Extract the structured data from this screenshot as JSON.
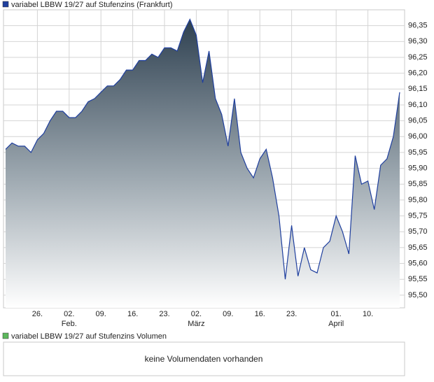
{
  "chart_data": {
    "type": "area",
    "categories": [
      null,
      null,
      null,
      null,
      null,
      "26.",
      null,
      null,
      null,
      null,
      "02.",
      null,
      null,
      null,
      null,
      "09.",
      null,
      null,
      null,
      null,
      "16.",
      null,
      null,
      null,
      null,
      "23.",
      null,
      null,
      null,
      null,
      "02.",
      null,
      null,
      null,
      null,
      "09.",
      null,
      null,
      null,
      null,
      "16.",
      null,
      null,
      null,
      null,
      "23.",
      null,
      null,
      null,
      null,
      null,
      null,
      "01.",
      null,
      null,
      null,
      null,
      "10.",
      null,
      null,
      null,
      null,
      null
    ],
    "month_labels": [
      null,
      null,
      null,
      null,
      null,
      null,
      null,
      null,
      null,
      null,
      "Feb.",
      null,
      null,
      null,
      null,
      null,
      null,
      null,
      null,
      null,
      null,
      null,
      null,
      null,
      null,
      null,
      null,
      null,
      null,
      null,
      "März",
      null,
      null,
      null,
      null,
      null,
      null,
      null,
      null,
      null,
      null,
      null,
      null,
      null,
      null,
      null,
      null,
      null,
      null,
      null,
      null,
      null,
      "April",
      null,
      null,
      null,
      null,
      null,
      null,
      null,
      null,
      null,
      null
    ],
    "series": [
      {
        "name": "variabel LBBW 19/27 auf Stufenzins (Frankfurt)",
        "color": "#1f3f9e",
        "values": [
          95.96,
          95.98,
          95.97,
          95.97,
          95.95,
          95.99,
          96.01,
          96.05,
          96.08,
          96.08,
          96.06,
          96.06,
          96.08,
          96.11,
          96.12,
          96.14,
          96.16,
          96.16,
          96.18,
          96.21,
          96.21,
          96.24,
          96.24,
          96.26,
          96.25,
          96.28,
          96.28,
          96.27,
          96.33,
          96.37,
          96.32,
          96.17,
          96.27,
          96.12,
          96.07,
          95.97,
          96.12,
          95.95,
          95.9,
          95.87,
          95.93,
          95.96,
          95.87,
          95.75,
          95.55,
          95.72,
          95.56,
          95.65,
          95.58,
          95.57,
          95.65,
          95.67,
          95.75,
          95.7,
          95.63,
          95.94,
          95.85,
          95.86,
          95.77,
          95.91,
          95.93,
          96.0,
          96.14
        ]
      }
    ],
    "ylim": [
      95.46,
      96.4
    ],
    "yticks": [
      {
        "value": 95.5,
        "label": "95,50"
      },
      {
        "value": 95.55,
        "label": "95,55"
      },
      {
        "value": 95.6,
        "label": "95,60"
      },
      {
        "value": 95.65,
        "label": "95,65"
      },
      {
        "value": 95.7,
        "label": "95,70"
      },
      {
        "value": 95.75,
        "label": "95,75"
      },
      {
        "value": 95.8,
        "label": "95,80"
      },
      {
        "value": 95.85,
        "label": "95,85"
      },
      {
        "value": 95.9,
        "label": "95,90"
      },
      {
        "value": 95.95,
        "label": "95,95"
      },
      {
        "value": 96.0,
        "label": "96,00"
      },
      {
        "value": 96.05,
        "label": "96,05"
      },
      {
        "value": 96.1,
        "label": "96,10"
      },
      {
        "value": 96.15,
        "label": "96,15"
      },
      {
        "value": 96.2,
        "label": "96,20"
      },
      {
        "value": 96.25,
        "label": "96,25"
      },
      {
        "value": 96.3,
        "label": "96,30"
      },
      {
        "value": 96.35,
        "label": "96,35"
      }
    ],
    "grid": true
  },
  "volume": {
    "legend": "variabel LBBW 19/27 auf Stufenzins Volumen",
    "legend_color": "#5cb85c",
    "message": "keine Volumendaten vorhanden"
  }
}
